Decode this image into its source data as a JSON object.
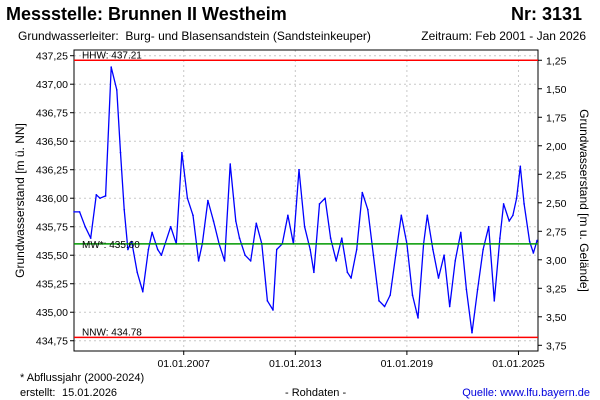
{
  "header": {
    "title": "Messstelle: Brunnen II Westheim",
    "number": "Nr: 3131",
    "aquifer_label": "Grundwasserleiter:",
    "aquifer_value": "Burg- und Blasensandstein (Sandsteinkeuper)",
    "period": "Zeitraum: Feb 2001 - Jan 2026"
  },
  "footer": {
    "note": "* Abflussjahr (2000-2024)",
    "created_label": "erstellt:",
    "created_date": "15.01.2026",
    "raw_data": "- Rohdaten -",
    "source": "Quelle: www.lfu.bayern.de"
  },
  "colors": {
    "series": "#0000ff",
    "threshold_high_low": "#ff0000",
    "mean": "#009900",
    "grid": "#c8c8c8"
  },
  "chart_data": {
    "type": "line",
    "ylabel": "Grundwasserstand [m ü. NN]",
    "ylabel_right": "Grundwasserstand [m u. Gelände]",
    "ylim": [
      434.66,
      437.3
    ],
    "xlim": [
      2001.1,
      2026.05
    ],
    "y_ticks": [
      {
        "value": 437.25,
        "label": "437,25"
      },
      {
        "value": 437.0,
        "label": "437,00"
      },
      {
        "value": 436.75,
        "label": "436,75"
      },
      {
        "value": 436.5,
        "label": "436,50"
      },
      {
        "value": 436.25,
        "label": "436,25"
      },
      {
        "value": 436.0,
        "label": "436,00"
      },
      {
        "value": 435.75,
        "label": "435,75"
      },
      {
        "value": 435.5,
        "label": "435,50"
      },
      {
        "value": 435.25,
        "label": "435,25"
      },
      {
        "value": 435.0,
        "label": "435,00"
      },
      {
        "value": 434.75,
        "label": "434,75"
      }
    ],
    "y_ticks_right": [
      {
        "value": 437.21,
        "label": "1,25"
      },
      {
        "value": 436.96,
        "label": "1,50"
      },
      {
        "value": 436.71,
        "label": "1,75"
      },
      {
        "value": 436.46,
        "label": "2,00"
      },
      {
        "value": 436.21,
        "label": "2,25"
      },
      {
        "value": 435.96,
        "label": "2,50"
      },
      {
        "value": 435.71,
        "label": "2,75"
      },
      {
        "value": 435.46,
        "label": "3,00"
      },
      {
        "value": 435.21,
        "label": "3,25"
      },
      {
        "value": 434.96,
        "label": "3,50"
      },
      {
        "value": 434.71,
        "label": "3,75"
      }
    ],
    "x_ticks": [
      {
        "value": 2007.0,
        "label": "01.01.2007"
      },
      {
        "value": 2013.0,
        "label": "01.01.2013"
      },
      {
        "value": 2019.0,
        "label": "01.01.2019"
      },
      {
        "value": 2025.0,
        "label": "01.01.2025"
      }
    ],
    "reference_lines": [
      {
        "name": "HHW",
        "label": "HHW: 437.21",
        "value": 437.21,
        "color": "#ff0000"
      },
      {
        "name": "MW*",
        "label": "MW*: 435.60",
        "value": 435.6,
        "color": "#009900"
      },
      {
        "name": "NNW",
        "label": "NNW: 434.78",
        "value": 434.78,
        "color": "#ff0000"
      }
    ],
    "grid": true,
    "series": [
      {
        "x": [
          2001.1,
          2001.4,
          2001.7,
          2002.0,
          2002.3,
          2002.5,
          2002.8,
          2003.1,
          2003.4,
          2003.6,
          2003.8,
          2004.0,
          2004.2,
          2004.5,
          2004.8,
          2005.1,
          2005.3,
          2005.6,
          2005.8,
          2006.0,
          2006.3,
          2006.6,
          2006.9,
          2007.2,
          2007.5,
          2007.8,
          2008.0,
          2008.3,
          2008.6,
          2008.9,
          2009.2,
          2009.5,
          2009.8,
          2010.0,
          2010.3,
          2010.6,
          2010.9,
          2011.2,
          2011.5,
          2011.8,
          2012.0,
          2012.3,
          2012.6,
          2012.9,
          2013.2,
          2013.5,
          2013.8,
          2014.0,
          2014.3,
          2014.6,
          2014.9,
          2015.2,
          2015.5,
          2015.8,
          2016.0,
          2016.3,
          2016.6,
          2016.9,
          2017.2,
          2017.5,
          2017.8,
          2018.1,
          2018.4,
          2018.7,
          2019.0,
          2019.3,
          2019.6,
          2019.9,
          2020.1,
          2020.4,
          2020.7,
          2021.0,
          2021.3,
          2021.6,
          2021.9,
          2022.2,
          2022.5,
          2022.8,
          2023.1,
          2023.4,
          2023.7,
          2024.0,
          2024.2,
          2024.5,
          2024.7,
          2024.9,
          2025.1,
          2025.3,
          2025.6,
          2025.8,
          2026.0
        ],
        "y": [
          435.88,
          435.88,
          435.75,
          435.65,
          436.03,
          436.0,
          436.02,
          437.15,
          436.95,
          436.4,
          435.9,
          435.55,
          435.62,
          435.35,
          435.18,
          435.55,
          435.7,
          435.55,
          435.5,
          435.6,
          435.75,
          435.6,
          436.4,
          436.0,
          435.85,
          435.45,
          435.6,
          435.98,
          435.8,
          435.6,
          435.45,
          436.3,
          435.8,
          435.65,
          435.5,
          435.45,
          435.78,
          435.6,
          435.1,
          435.02,
          435.55,
          435.6,
          435.85,
          435.6,
          436.25,
          435.75,
          435.55,
          435.35,
          435.95,
          436.0,
          435.65,
          435.45,
          435.65,
          435.35,
          435.3,
          435.55,
          436.05,
          435.9,
          435.5,
          435.1,
          435.05,
          435.15,
          435.5,
          435.85,
          435.6,
          435.15,
          434.95,
          435.6,
          435.85,
          435.55,
          435.3,
          435.5,
          435.05,
          435.45,
          435.7,
          435.2,
          434.82,
          435.2,
          435.55,
          435.75,
          435.1,
          435.65,
          435.95,
          435.8,
          435.85,
          436.0,
          436.28,
          435.95,
          435.62,
          435.52,
          435.63
        ]
      }
    ]
  }
}
